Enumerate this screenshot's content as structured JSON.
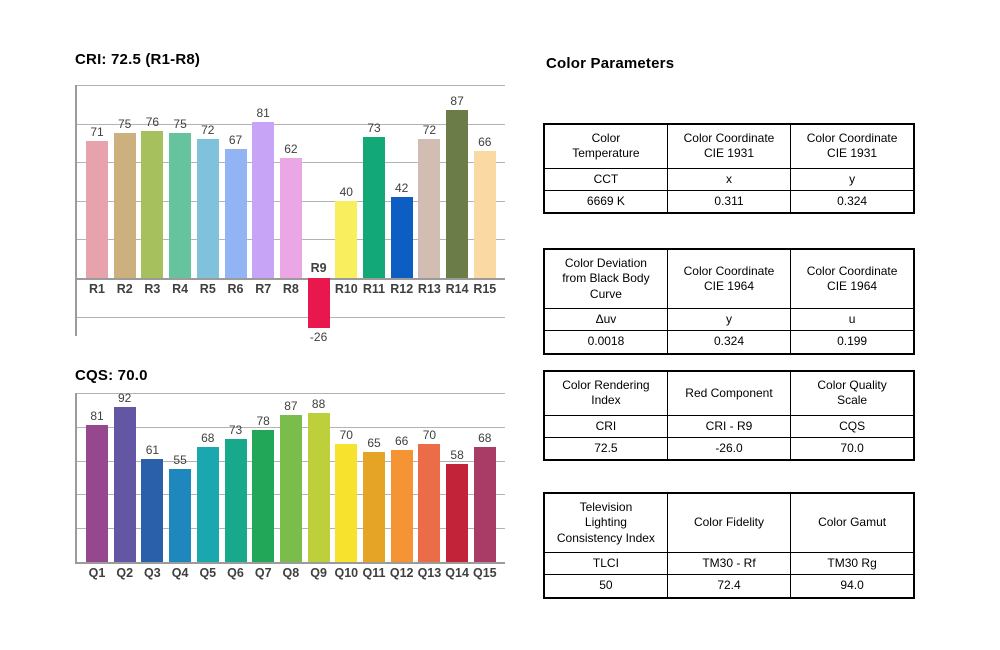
{
  "titles": {
    "cri": "CRI: 72.5 (R1-R8)",
    "cqs": "CQS: 70.0"
  },
  "chart_data": [
    {
      "type": "bar",
      "title": "CRI: 72.5 (R1-R8)",
      "categories": [
        "R1",
        "R2",
        "R3",
        "R4",
        "R5",
        "R6",
        "R7",
        "R8",
        "R9",
        "R10",
        "R11",
        "R12",
        "R13",
        "R14",
        "R15"
      ],
      "values": [
        71,
        75,
        76,
        75,
        72,
        67,
        81,
        62,
        -26,
        40,
        73,
        42,
        72,
        87,
        66
      ],
      "bar_colors": [
        "#e6a3ac",
        "#ccb07e",
        "#a6c05e",
        "#65c39d",
        "#80c1dc",
        "#92b4f4",
        "#c8a4f6",
        "#eba6e6",
        "#e8174e",
        "#f9ee5d",
        "#12a878",
        "#0d5ec2",
        "#d2bdb3",
        "#6b7c49",
        "#fbd9a2"
      ],
      "xlabel": "",
      "ylabel": "",
      "ylim": [
        -30,
        100
      ],
      "ytick_step": 20,
      "grid": "horizontal",
      "legend": "none",
      "value_labels_shown": true
    },
    {
      "type": "bar",
      "title": "CQS: 70.0",
      "categories": [
        "Q1",
        "Q2",
        "Q3",
        "Q4",
        "Q5",
        "Q6",
        "Q7",
        "Q8",
        "Q9",
        "Q10",
        "Q11",
        "Q12",
        "Q13",
        "Q14",
        "Q15"
      ],
      "values": [
        81,
        92,
        61,
        55,
        68,
        73,
        78,
        87,
        88,
        70,
        65,
        66,
        70,
        58,
        68
      ],
      "bar_colors": [
        "#96488f",
        "#6356a4",
        "#2a5fa9",
        "#1e88be",
        "#1ba7ae",
        "#18a98c",
        "#22a759",
        "#7abd4a",
        "#bdd03b",
        "#f7e32d",
        "#e6a427",
        "#f49434",
        "#ea6c48",
        "#c22339",
        "#a83c67"
      ],
      "xlabel": "",
      "ylabel": "",
      "ylim": [
        0,
        100
      ],
      "ytick_step": 20,
      "grid": "horizontal",
      "legend": "none",
      "value_labels_shown": true
    }
  ],
  "color_parameters": {
    "title": "Color Parameters",
    "tables": [
      {
        "headers": [
          "Color\nTemperature",
          "Color Coordinate\nCIE 1931",
          "Color Coordinate\nCIE 1931"
        ],
        "rows": [
          [
            "CCT",
            "x",
            "y"
          ],
          [
            "6669 K",
            "0.311",
            "0.324"
          ]
        ]
      },
      {
        "headers": [
          "Color Deviation\nfrom Black Body\nCurve",
          "Color Coordinate\nCIE 1964",
          "Color Coordinate\nCIE 1964"
        ],
        "rows": [
          [
            "Δuv",
            "y",
            "u"
          ],
          [
            "0.0018",
            "0.324",
            "0.199"
          ]
        ]
      },
      {
        "headers": [
          "Color Rendering\nIndex",
          "Red Component",
          "Color Quality\nScale"
        ],
        "rows": [
          [
            "CRI",
            "CRI - R9",
            "CQS"
          ],
          [
            "72.5",
            "-26.0",
            "70.0"
          ]
        ]
      },
      {
        "headers": [
          "Television\nLighting\nConsistency Index",
          "Color Fidelity",
          "Color Gamut"
        ],
        "rows": [
          [
            "TLCI",
            "TM30 - Rf",
            "TM30 Rg"
          ],
          [
            "50",
            "72.4",
            "94.0"
          ]
        ]
      }
    ]
  },
  "style_colors": {
    "gridline": "#b3b3b3",
    "axis": "#9b9b9b",
    "label_text": "#3f3f3f",
    "negative_bar": "#e8174e"
  }
}
